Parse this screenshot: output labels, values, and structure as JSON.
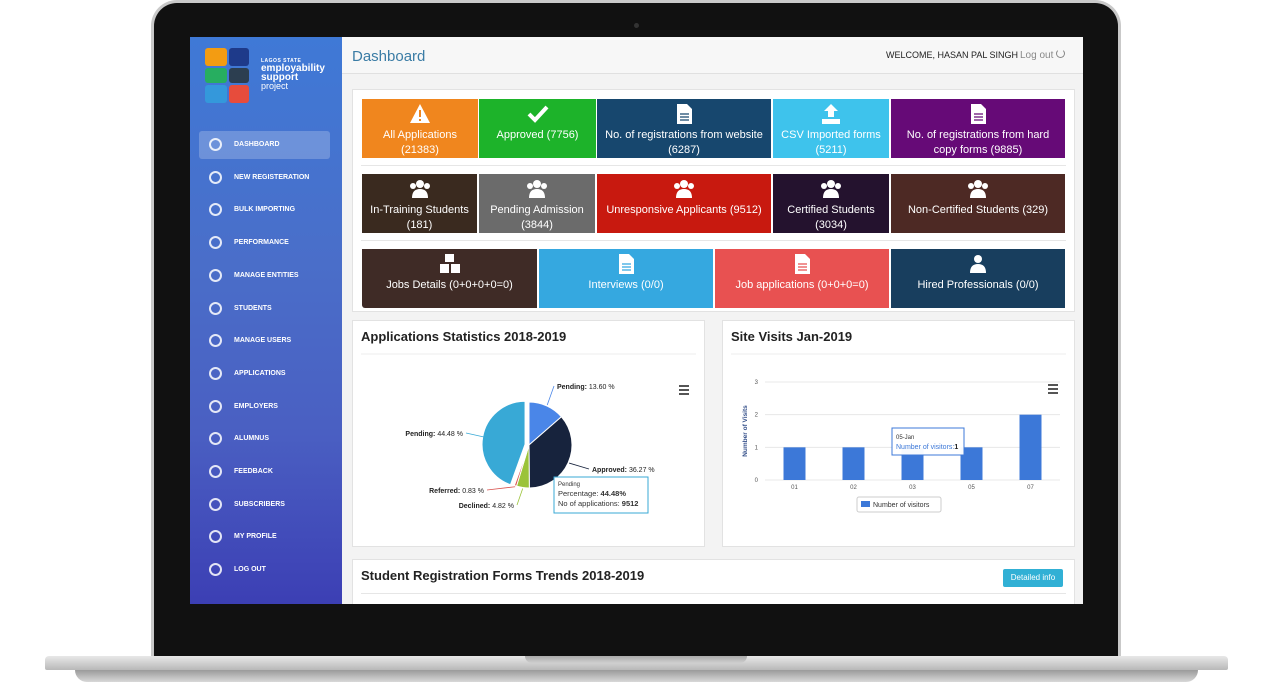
{
  "sidebar": {
    "logo": {
      "state": "LAGOS STATE",
      "line1": "employability",
      "line2": "support",
      "line3": "project"
    },
    "menu": [
      "DASHBOARD",
      "NEW REGISTERATION",
      "BULK IMPORTING",
      "PERFORMANCE",
      "MANAGE ENTITIES",
      "STUDENTS",
      "MANAGE USERS",
      "APPLICATIONS",
      "EMPLOYERS",
      "ALUMNUS",
      "FEEDBACK",
      "SUBSCRIBERS",
      "MY PROFILE",
      "LOG OUT"
    ]
  },
  "header": {
    "title": "Dashboard",
    "welcome": "WELCOME, HASAN PAL SINGH",
    "logout": "Log out"
  },
  "tiles": [
    [
      {
        "label": "All Applications",
        "count": "(21383)",
        "color": "#f0861e"
      },
      {
        "label": "Approved",
        "count": "(7756)",
        "color": "#1db32a"
      },
      {
        "label": "No. of registrations from website",
        "count": "(6287)",
        "color": "#17476e"
      },
      {
        "label": "CSV Imported forms",
        "count": "(5211)",
        "color": "#3ec3ec"
      },
      {
        "label": "No. of registrations from hard copy forms",
        "count": "(9885)",
        "color": "#660a77"
      }
    ],
    [
      {
        "label": "In-Training Students",
        "count": "(181)",
        "color": "#3a2a1f"
      },
      {
        "label": "Pending Admission",
        "count": "(3844)",
        "color": "#6b6b6b"
      },
      {
        "label": "Unresponsive Applicants",
        "count": "(9512)",
        "color": "#c8190f"
      },
      {
        "label": "Certified Students",
        "count": "(3034)",
        "color": "#24122e"
      },
      {
        "label": "Non-Certified Students",
        "count": "(329)",
        "color": "#4d2924"
      }
    ],
    [
      {
        "label": "Jobs Details",
        "count": "(0+0+0+0=0)",
        "color": "#3f2b26"
      },
      {
        "label": "Interviews",
        "count": "(0/0)",
        "color": "#35a8e0"
      },
      {
        "label": "Job applications",
        "count": "(0+0+0=0)",
        "color": "#e85151"
      },
      {
        "label": "Hired Professionals",
        "count": "(0/0)",
        "color": "#183e5e"
      }
    ]
  ],
  "pie_chart": {
    "type": "pie",
    "title": "Applications Statistics 2018-2019",
    "categories": [
      "Pending:",
      "Approved:",
      "Declined:",
      "Referred:",
      "Pending:"
    ],
    "values": [
      13.6,
      36.27,
      4.82,
      0.83,
      44.48
    ],
    "value_labels": [
      "13.60 %",
      "36.27 %",
      "4.82 %",
      "0.83 %",
      "44.48 %"
    ],
    "colors": [
      "#4a86e8",
      "#17233d",
      "#9bc33a",
      "#d9534f",
      "#38a9d6"
    ],
    "tooltip": {
      "title": "Pending",
      "percentage_label": "Percentage:",
      "percentage": "44.48%",
      "count_label": "No of applications:",
      "count": "9512"
    }
  },
  "bar_chart": {
    "type": "bar",
    "title": "Site Visits Jan-2019",
    "y_label": "Number of Visits",
    "categories": [
      "01",
      "02",
      "03",
      "05",
      "07"
    ],
    "series": [
      {
        "name": "Number of visitors",
        "color": "#3c78d8",
        "values": [
          1,
          1,
          1,
          1,
          2
        ]
      }
    ],
    "ylim": [
      0,
      3
    ],
    "yticks": [
      0,
      1,
      2,
      3
    ],
    "grid": true,
    "tooltip": {
      "title": "05-Jan",
      "label": "Number of visitors:",
      "value": "1"
    }
  },
  "trends_panel": {
    "title": "Student Registration Forms Trends 2018-2019",
    "button": "Detailed info"
  }
}
